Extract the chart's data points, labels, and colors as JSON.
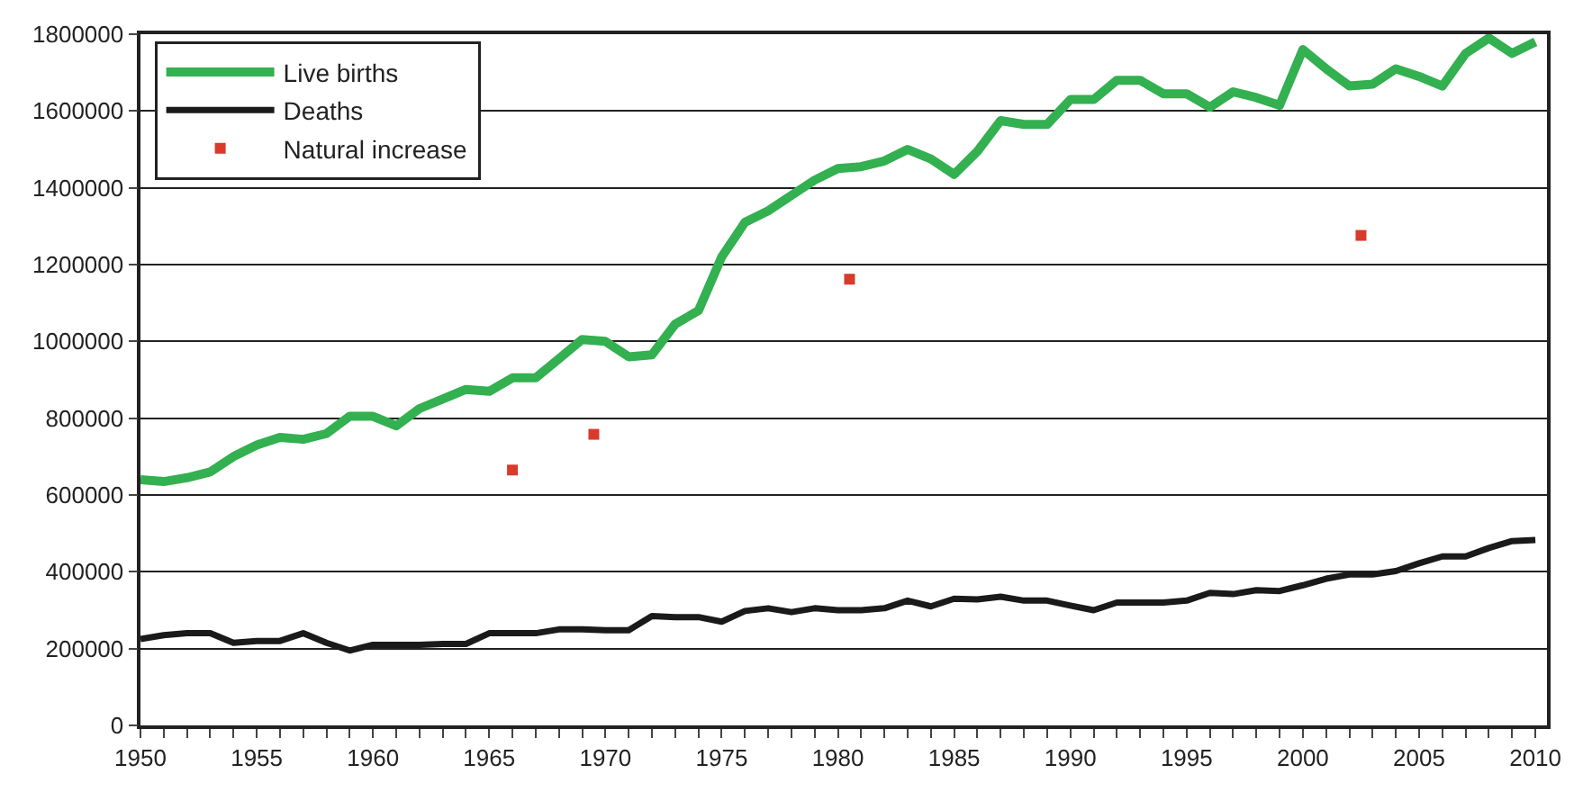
{
  "chart_data": {
    "type": "line",
    "x": [
      1950,
      1951,
      1952,
      1953,
      1954,
      1955,
      1956,
      1957,
      1958,
      1959,
      1960,
      1961,
      1962,
      1963,
      1964,
      1965,
      1966,
      1967,
      1968,
      1969,
      1970,
      1971,
      1972,
      1973,
      1974,
      1975,
      1976,
      1977,
      1978,
      1979,
      1980,
      1981,
      1982,
      1983,
      1984,
      1985,
      1986,
      1987,
      1988,
      1989,
      1990,
      1991,
      1992,
      1993,
      1994,
      1995,
      1996,
      1997,
      1998,
      1999,
      2000,
      2001,
      2002,
      2003,
      2004,
      2005,
      2006,
      2007,
      2008,
      2009,
      2010
    ],
    "series": [
      {
        "name": "Live births",
        "color": "#33b04f",
        "values": [
          640000,
          635000,
          645000,
          660000,
          700000,
          730000,
          750000,
          745000,
          760000,
          805000,
          805000,
          780000,
          825000,
          850000,
          875000,
          870000,
          905000,
          905000,
          955000,
          1005000,
          1000000,
          960000,
          965000,
          1045000,
          1080000,
          1220000,
          1310000,
          1340000,
          1380000,
          1420000,
          1450000,
          1455000,
          1470000,
          1500000,
          1475000,
          1435000,
          1495000,
          1575000,
          1565000,
          1565000,
          1630000,
          1630000,
          1680000,
          1680000,
          1645000,
          1645000,
          1610000,
          1650000,
          1635000,
          1615000,
          1760000,
          1710000,
          1665000,
          1670000,
          1710000,
          1690000,
          1665000,
          1750000,
          1790000,
          1750000,
          1780000
        ]
      },
      {
        "name": "Deaths",
        "color": "#1a1a1a",
        "values": [
          225000,
          235000,
          240000,
          240000,
          215000,
          220000,
          220000,
          240000,
          215000,
          195000,
          210000,
          210000,
          210000,
          212000,
          212000,
          240000,
          240000,
          240000,
          250000,
          250000,
          248000,
          248000,
          285000,
          282000,
          282000,
          270000,
          298000,
          305000,
          295000,
          305000,
          300000,
          300000,
          305000,
          325000,
          310000,
          330000,
          328000,
          335000,
          325000,
          325000,
          312000,
          300000,
          320000,
          320000,
          320000,
          325000,
          345000,
          342000,
          352000,
          350000,
          365000,
          382000,
          393000,
          393000,
          402000,
          422000,
          440000,
          440000,
          462000,
          480000,
          483000
        ]
      },
      {
        "name": "Natural increase",
        "color": "#d93a2b",
        "type": "scatter",
        "marker": "square",
        "x": [
          1966,
          1969.5,
          1980.5,
          2002.5
        ],
        "values": [
          665000,
          758000,
          1162000,
          1276000
        ]
      }
    ],
    "xlim": [
      1950,
      2010.5
    ],
    "xticks": [
      1950,
      {
        "value": 1951,
        "label": null
      },
      {
        "value": 1952,
        "label": null
      },
      {
        "value": 1953,
        "label": null
      },
      {
        "value": 1954,
        "label": null
      },
      1955,
      {
        "value": 1956,
        "label": null
      },
      {
        "value": 1957,
        "label": null
      },
      {
        "value": 1958,
        "label": null
      },
      {
        "value": 1959,
        "label": null
      },
      1960,
      {
        "value": 1961,
        "label": null
      },
      {
        "value": 1962,
        "label": null
      },
      {
        "value": 1963,
        "label": null
      },
      {
        "value": 1964,
        "label": null
      },
      1965,
      {
        "value": 1966,
        "label": null
      },
      {
        "value": 1967,
        "label": null
      },
      {
        "value": 1968,
        "label": null
      },
      {
        "value": 1969,
        "label": null
      },
      1970,
      {
        "value": 1971,
        "label": null
      },
      {
        "value": 1972,
        "label": null
      },
      {
        "value": 1973,
        "label": null
      },
      {
        "value": 1974,
        "label": null
      },
      1975,
      {
        "value": 1976,
        "label": null
      },
      {
        "value": 1977,
        "label": null
      },
      {
        "value": 1978,
        "label": null
      },
      {
        "value": 1979,
        "label": null
      },
      1980,
      {
        "value": 1981,
        "label": null
      },
      {
        "value": 1982,
        "label": null
      },
      {
        "value": 1983,
        "label": null
      },
      {
        "value": 1984,
        "label": null
      },
      1985,
      {
        "value": 1986,
        "label": null
      },
      {
        "value": 1987,
        "label": null
      },
      {
        "value": 1988,
        "label": null
      },
      {
        "value": 1989,
        "label": null
      },
      1990,
      {
        "value": 1991,
        "label": null
      },
      {
        "value": 1992,
        "label": null
      },
      {
        "value": 1993,
        "label": null
      },
      {
        "value": 1994,
        "label": null
      },
      1995,
      {
        "value": 1996,
        "label": null
      },
      {
        "value": 1997,
        "label": null
      },
      {
        "value": 1998,
        "label": null
      },
      {
        "value": 1999,
        "label": null
      },
      2000,
      {
        "value": 2001,
        "label": null
      },
      {
        "value": 2002,
        "label": null
      },
      {
        "value": 2003,
        "label": null
      },
      {
        "value": 2004,
        "label": null
      },
      2005,
      {
        "value": 2006,
        "label": null
      },
      {
        "value": 2007,
        "label": null
      },
      {
        "value": 2008,
        "label": null
      },
      {
        "value": 2009,
        "label": null
      },
      2010
    ],
    "ylim": [
      0,
      1800000
    ],
    "yticks": [
      0,
      200000,
      400000,
      600000,
      800000,
      1000000,
      1200000,
      1400000,
      1600000,
      1800000
    ],
    "grid": "y",
    "legend": "top left",
    "marker": "none",
    "line_style": "solid"
  }
}
